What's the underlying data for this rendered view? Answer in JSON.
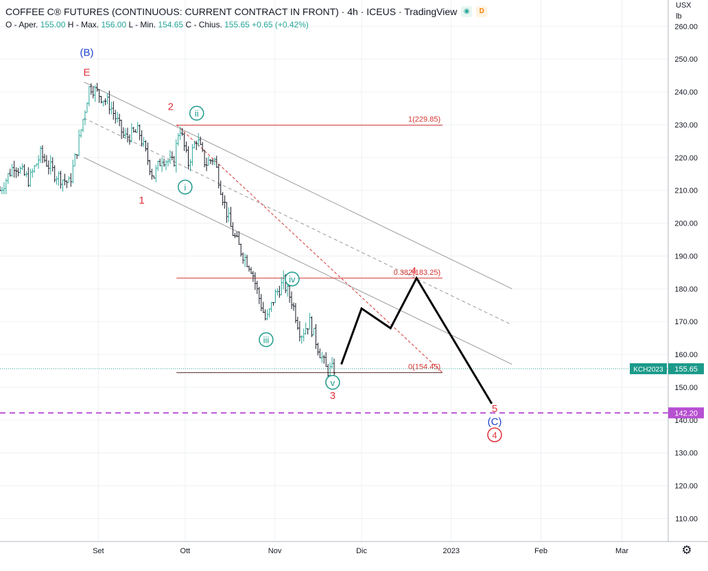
{
  "header": {
    "title": "COFFEE C® FUTURES (CONTINUOUS: CURRENT CONTRACT IN FRONT) · 4h · ICEUS · TradingView",
    "badge_d": "D",
    "ohlc": {
      "o_label": "O - Aper.",
      "o": "155.00",
      "h_label": "H - Max.",
      "h": "156.00",
      "l_label": "L - Min.",
      "l": "154.65",
      "c_label": "C - Chius.",
      "c": "155.65",
      "change": "+0.65 (+0.42%)"
    }
  },
  "axis_unit": {
    "currency": "USX",
    "unit": "lb"
  },
  "colors": {
    "up": "#26a69a",
    "down": "#131722",
    "wave_red": "#e0303a",
    "wave_blue": "#1d3fcf",
    "wave_teal": "#1b9a8a",
    "fib_line": "#d3342f",
    "channel": "#9a9a9a",
    "target": "#b74fd1",
    "price_tag": "#1b9a8a"
  },
  "chart_data": {
    "type": "candlestick",
    "x_range": [
      "2022-07-29",
      "2023-03-17"
    ],
    "ylim": [
      103,
      268
    ],
    "y_ticks": [
      110.0,
      120.0,
      130.0,
      140.0,
      150.0,
      160.0,
      170.0,
      180.0,
      190.0,
      200.0,
      210.0,
      220.0,
      230.0,
      240.0,
      250.0,
      260.0
    ],
    "x_ticks": [
      {
        "label": "Set",
        "date": "2022-09-01"
      },
      {
        "label": "Ott",
        "date": "2022-10-01"
      },
      {
        "label": "Nov",
        "date": "2022-11-01"
      },
      {
        "label": "Dic",
        "date": "2022-12-01"
      },
      {
        "label": "2023",
        "date": "2023-01-01"
      },
      {
        "label": "Feb",
        "date": "2023-02-01"
      },
      {
        "label": "Mar",
        "date": "2023-03-01"
      }
    ],
    "price_path": [
      {
        "date": "2022-07-29",
        "price": 210
      },
      {
        "date": "2022-08-03",
        "price": 218
      },
      {
        "date": "2022-08-08",
        "price": 213
      },
      {
        "date": "2022-08-12",
        "price": 221
      },
      {
        "date": "2022-08-17",
        "price": 215
      },
      {
        "date": "2022-08-22",
        "price": 212
      },
      {
        "date": "2022-08-25",
        "price": 224
      },
      {
        "date": "2022-08-29",
        "price": 242
      },
      {
        "date": "2022-09-05",
        "price": 236
      },
      {
        "date": "2022-09-10",
        "price": 226
      },
      {
        "date": "2022-09-15",
        "price": 228
      },
      {
        "date": "2022-09-20",
        "price": 214
      },
      {
        "date": "2022-09-23",
        "price": 220
      },
      {
        "date": "2022-09-27",
        "price": 218
      },
      {
        "date": "2022-09-29",
        "price": 230
      },
      {
        "date": "2022-10-02",
        "price": 218
      },
      {
        "date": "2022-10-05",
        "price": 226
      },
      {
        "date": "2022-10-08",
        "price": 218
      },
      {
        "date": "2022-10-11",
        "price": 220
      },
      {
        "date": "2022-10-14",
        "price": 208
      },
      {
        "date": "2022-10-17",
        "price": 198
      },
      {
        "date": "2022-10-20",
        "price": 192
      },
      {
        "date": "2022-10-24",
        "price": 186
      },
      {
        "date": "2022-10-26",
        "price": 179
      },
      {
        "date": "2022-10-29",
        "price": 170
      },
      {
        "date": "2022-11-01",
        "price": 178
      },
      {
        "date": "2022-11-04",
        "price": 182
      },
      {
        "date": "2022-11-07",
        "price": 176
      },
      {
        "date": "2022-11-10",
        "price": 166
      },
      {
        "date": "2022-11-13",
        "price": 170
      },
      {
        "date": "2022-11-16",
        "price": 162
      },
      {
        "date": "2022-11-19",
        "price": 155
      },
      {
        "date": "2022-11-22",
        "price": 155.65
      }
    ],
    "last_price": {
      "value": 155.65,
      "label": "155.65",
      "symbol": "KCH2023"
    },
    "target_line": {
      "value": 142.2,
      "label": "142.20"
    },
    "fib_levels": [
      {
        "label": "1(229.85)",
        "value": 229.85,
        "from": "2022-09-28",
        "to": "2022-12-29"
      },
      {
        "label": "0.382(183.25)",
        "value": 183.25,
        "from": "2022-09-28",
        "to": "2022-12-29"
      },
      {
        "label": "0(154.45)",
        "value": 154.45,
        "from": "2022-09-28",
        "to": "2022-12-29"
      }
    ],
    "channel_lines": [
      {
        "from": {
          "date": "2022-08-27",
          "price": 243
        },
        "to": {
          "date": "2023-01-22",
          "price": 180
        },
        "style": "solid"
      },
      {
        "from": {
          "date": "2022-08-27",
          "price": 232
        },
        "to": {
          "date": "2023-01-22",
          "price": 169
        },
        "style": "dashed"
      },
      {
        "from": {
          "date": "2022-08-27",
          "price": 220
        },
        "to": {
          "date": "2023-01-22",
          "price": 157
        },
        "style": "solid"
      }
    ],
    "red_dashed_trend": {
      "from": {
        "date": "2022-09-28",
        "price": 230
      },
      "to": {
        "date": "2022-12-29",
        "price": 154.45
      }
    },
    "projection": [
      {
        "date": "2022-11-24",
        "price": 157
      },
      {
        "date": "2022-12-01",
        "price": 174
      },
      {
        "date": "2022-12-11",
        "price": 168
      },
      {
        "date": "2022-12-20",
        "price": 183.25
      },
      {
        "date": "2023-01-15",
        "price": 145
      }
    ],
    "wave_labels": [
      {
        "text": "(B)",
        "date": "2022-08-28",
        "price": 252,
        "color": "blue",
        "circled": false
      },
      {
        "text": "E",
        "date": "2022-08-28",
        "price": 246,
        "color": "red",
        "circled": false
      },
      {
        "text": "2",
        "date": "2022-09-26",
        "price": 235.5,
        "color": "red",
        "circled": false
      },
      {
        "text": "ii",
        "date": "2022-10-05",
        "price": 233.5,
        "color": "teal",
        "circled": true
      },
      {
        "text": "1",
        "date": "2022-09-16",
        "price": 207,
        "color": "red",
        "circled": false
      },
      {
        "text": "i",
        "date": "2022-10-01",
        "price": 211,
        "color": "teal",
        "circled": true
      },
      {
        "text": "iv",
        "date": "2022-11-07",
        "price": 183,
        "color": "teal",
        "circled": true
      },
      {
        "text": "iii",
        "date": "2022-10-29",
        "price": 164.5,
        "color": "teal",
        "circled": true
      },
      {
        "text": "v",
        "date": "2022-11-21",
        "price": 151.5,
        "color": "teal",
        "circled": true
      },
      {
        "text": "3",
        "date": "2022-11-21",
        "price": 147.5,
        "color": "red",
        "circled": false
      },
      {
        "text": "4",
        "date": "2022-12-19",
        "price": 185.5,
        "color": "red",
        "circled": false
      },
      {
        "text": "5",
        "date": "2023-01-16",
        "price": 143.5,
        "color": "red",
        "circled": false
      },
      {
        "text": "(C)",
        "date": "2023-01-16",
        "price": 139.5,
        "color": "blue",
        "circled": false
      },
      {
        "text": "4",
        "date": "2023-01-16",
        "price": 135.5,
        "color": "red",
        "circled": true
      }
    ]
  }
}
